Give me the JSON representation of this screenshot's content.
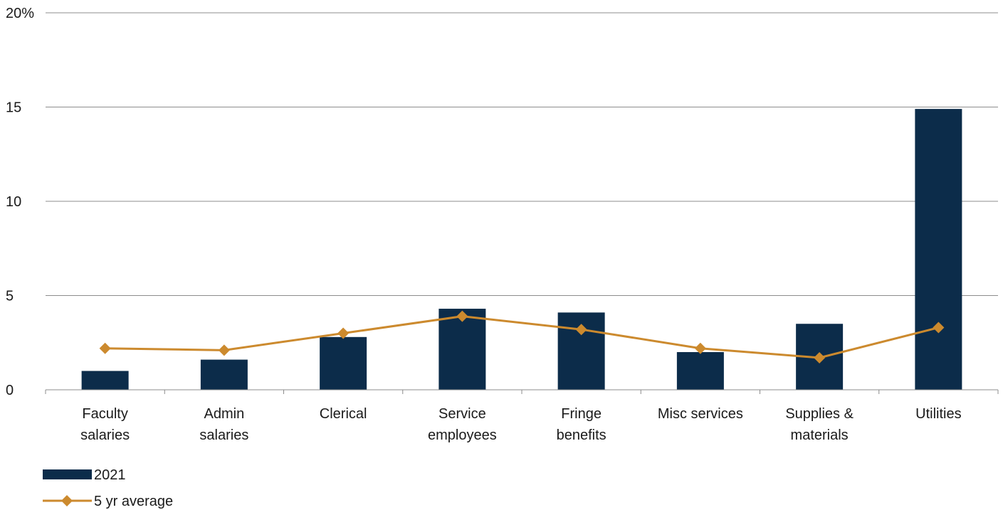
{
  "chart_data": {
    "type": "bar",
    "categories": [
      [
        "Faculty",
        "salaries"
      ],
      [
        "Admin",
        "salaries"
      ],
      [
        "Clerical"
      ],
      [
        "Service",
        "employees"
      ],
      [
        "Fringe",
        "benefits"
      ],
      [
        "Misc services"
      ],
      [
        "Supplies &",
        "materials"
      ],
      [
        "Utilities"
      ]
    ],
    "y_ticks": [
      "0",
      "5",
      "10",
      "15",
      "20%"
    ],
    "y_tick_values": [
      0,
      5,
      10,
      15,
      20
    ],
    "ylim": [
      0,
      20
    ],
    "grid": true,
    "legend_position": "bottom-left",
    "series": [
      {
        "name": "2021",
        "kind": "bar",
        "color": "#0c2c4a",
        "values": [
          1.0,
          1.6,
          2.8,
          4.3,
          4.1,
          2.0,
          3.5,
          14.9
        ]
      },
      {
        "name": "5 yr average",
        "kind": "line",
        "color": "#cc8a2e",
        "values": [
          2.2,
          2.1,
          3.0,
          3.9,
          3.2,
          2.2,
          1.7,
          3.3
        ]
      }
    ]
  }
}
